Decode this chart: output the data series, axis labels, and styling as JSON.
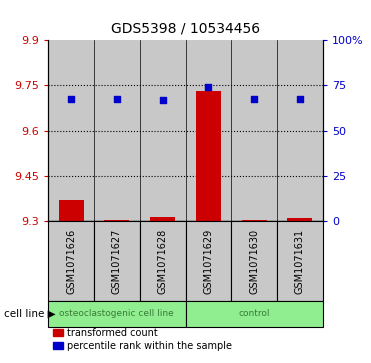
{
  "title": "GDS5398 / 10534456",
  "samples": [
    "GSM1071626",
    "GSM1071627",
    "GSM1071628",
    "GSM1071629",
    "GSM1071630",
    "GSM1071631"
  ],
  "red_values": [
    9.37,
    9.305,
    9.315,
    9.73,
    9.305,
    9.31
  ],
  "blue_values": [
    9.705,
    9.705,
    9.7,
    9.745,
    9.705,
    9.705
  ],
  "ylim_left": [
    9.3,
    9.9
  ],
  "ylim_right": [
    0,
    100
  ],
  "yticks_left": [
    9.3,
    9.45,
    9.6,
    9.75,
    9.9
  ],
  "yticks_right": [
    0,
    25,
    50,
    75,
    100
  ],
  "ytick_labels_left": [
    "9.3",
    "9.45",
    "9.6",
    "9.75",
    "9.9"
  ],
  "ytick_labels_right": [
    "0",
    "25",
    "50",
    "75",
    "100%"
  ],
  "dotted_lines": [
    9.45,
    9.6,
    9.75
  ],
  "groups": [
    {
      "label": "osteoclastogenic cell line",
      "start": 0,
      "end": 2,
      "color": "#90EE90"
    },
    {
      "label": "control",
      "start": 3,
      "end": 5,
      "color": "#90EE90"
    }
  ],
  "bar_base": 9.3,
  "bar_width": 0.55,
  "cell_line_label": "cell line",
  "legend_red": "transformed count",
  "legend_blue": "percentile rank within the sample",
  "red_color": "#CC0000",
  "blue_color": "#0000CC",
  "bg_gray": "#C8C8C8",
  "bg_green": "#90EE90",
  "text_green": "#3a7a3a"
}
